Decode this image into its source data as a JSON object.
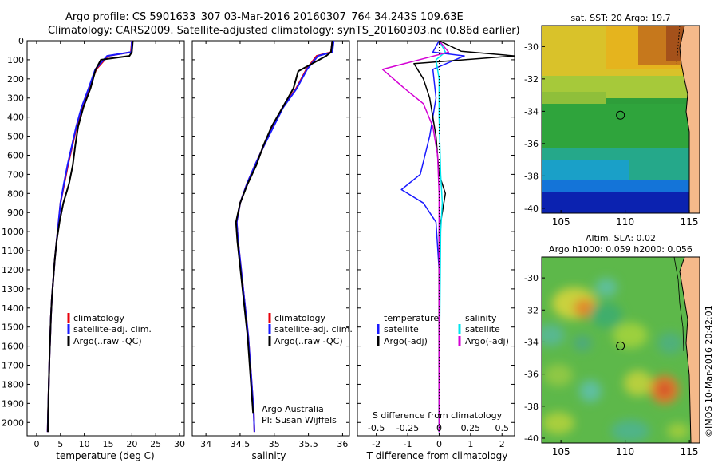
{
  "header": {
    "line1": "Argo profile: CS 5901633_307 03-Mar-2016 20160307_764 34.243S 109.63E",
    "line2": "Climatology: CARS2009. Satellite-adjusted climatology: synTS_20160303.nc (0.86d earlier)"
  },
  "copyright": "©IMOS 10-Mar-2016 20:42:01",
  "colors": {
    "climatology": "#e8000b",
    "satellite": "#1a1aff",
    "argo": "#000000",
    "sat_salinity": "#00e5ee",
    "argo_adj_salinity": "#d400d4"
  },
  "chart_data": [
    {
      "id": "temperature",
      "type": "line",
      "xlabel": "temperature (deg C)",
      "ylabel": "",
      "xlim": [
        -2,
        31
      ],
      "ylim": [
        2070,
        0
      ],
      "xticks": [
        0,
        5,
        10,
        15,
        20,
        25,
        30
      ],
      "yticks": [
        0,
        100,
        200,
        300,
        400,
        500,
        600,
        700,
        800,
        900,
        1000,
        1100,
        1200,
        1300,
        1400,
        1500,
        1600,
        1700,
        1800,
        1900,
        2000
      ],
      "legend": [
        "climatology",
        "satellite-adj. clim.",
        "Argo(..raw -QC)"
      ],
      "series": [
        {
          "name": "climatology",
          "points": [
            [
              20,
              0
            ],
            [
              19.8,
              60
            ],
            [
              15,
              80
            ],
            [
              12.5,
              150
            ],
            [
              11,
              250
            ],
            [
              9.5,
              350
            ],
            [
              8.4,
              450
            ],
            [
              7.5,
              550
            ],
            [
              6.6,
              650
            ],
            [
              5.8,
              750
            ],
            [
              5,
              850
            ],
            [
              4.6,
              950
            ],
            [
              4.2,
              1050
            ],
            [
              3.8,
              1150
            ],
            [
              3.5,
              1250
            ],
            [
              3.2,
              1350
            ],
            [
              3,
              1450
            ],
            [
              2.85,
              1550
            ],
            [
              2.7,
              1650
            ],
            [
              2.6,
              1750
            ],
            [
              2.5,
              1850
            ],
            [
              2.4,
              1950
            ],
            [
              2.3,
              2050
            ]
          ]
        },
        {
          "name": "satellite-adj. clim.",
          "points": [
            [
              20,
              0
            ],
            [
              19.9,
              60
            ],
            [
              14.8,
              80
            ],
            [
              12.3,
              150
            ],
            [
              10.9,
              250
            ],
            [
              9.4,
              350
            ],
            [
              8.3,
              450
            ],
            [
              7.4,
              550
            ],
            [
              6.5,
              650
            ],
            [
              5.7,
              750
            ],
            [
              5,
              850
            ],
            [
              4.6,
              950
            ],
            [
              4.2,
              1050
            ],
            [
              3.8,
              1150
            ],
            [
              3.5,
              1250
            ],
            [
              3.2,
              1350
            ],
            [
              3,
              1450
            ],
            [
              2.85,
              1550
            ],
            [
              2.7,
              1650
            ],
            [
              2.6,
              1750
            ],
            [
              2.5,
              1850
            ],
            [
              2.4,
              1950
            ],
            [
              2.3,
              2050
            ]
          ]
        },
        {
          "name": "Argo(..raw -QC)",
          "points": [
            [
              20.2,
              0
            ],
            [
              20,
              60
            ],
            [
              19.5,
              80
            ],
            [
              13.5,
              100
            ],
            [
              12.4,
              150
            ],
            [
              11.3,
              250
            ],
            [
              9.8,
              350
            ],
            [
              8.7,
              450
            ],
            [
              8.1,
              550
            ],
            [
              7.6,
              650
            ],
            [
              6.8,
              750
            ],
            [
              5.6,
              850
            ],
            [
              4.8,
              950
            ],
            [
              4.2,
              1050
            ],
            [
              3.8,
              1150
            ],
            [
              3.5,
              1250
            ],
            [
              3.2,
              1350
            ],
            [
              3,
              1450
            ],
            [
              2.85,
              1550
            ],
            [
              2.7,
              1650
            ],
            [
              2.6,
              1750
            ],
            [
              2.5,
              1850
            ],
            [
              2.4,
              1950
            ],
            [
              2.35,
              2050
            ]
          ]
        }
      ]
    },
    {
      "id": "salinity",
      "type": "line",
      "xlabel": "salinity",
      "xlim": [
        33.8,
        36.1
      ],
      "ylim": [
        2070,
        0
      ],
      "xticks": [
        34,
        34.5,
        35,
        35.5,
        36
      ],
      "legend": [
        "climatology",
        "satellite-adj. clim.",
        "Argo(..raw -QC)"
      ],
      "annotation": [
        "Argo Australia",
        "PI: Susan Wijffels"
      ],
      "series": [
        {
          "name": "climatology",
          "points": [
            [
              35.85,
              0
            ],
            [
              35.83,
              60
            ],
            [
              35.62,
              80
            ],
            [
              35.47,
              150
            ],
            [
              35.32,
              250
            ],
            [
              35.12,
              350
            ],
            [
              34.98,
              450
            ],
            [
              34.85,
              550
            ],
            [
              34.72,
              650
            ],
            [
              34.6,
              750
            ],
            [
              34.5,
              850
            ],
            [
              34.45,
              950
            ],
            [
              34.47,
              1050
            ],
            [
              34.5,
              1150
            ],
            [
              34.53,
              1250
            ],
            [
              34.56,
              1350
            ],
            [
              34.59,
              1450
            ],
            [
              34.62,
              1550
            ],
            [
              34.64,
              1650
            ],
            [
              34.66,
              1750
            ],
            [
              34.68,
              1850
            ],
            [
              34.7,
              1950
            ],
            [
              34.71,
              2050
            ]
          ]
        },
        {
          "name": "satellite-adj. clim.",
          "points": [
            [
              35.87,
              0
            ],
            [
              35.85,
              60
            ],
            [
              35.64,
              80
            ],
            [
              35.48,
              150
            ],
            [
              35.33,
              250
            ],
            [
              35.13,
              350
            ],
            [
              34.99,
              450
            ],
            [
              34.85,
              550
            ],
            [
              34.72,
              650
            ],
            [
              34.6,
              750
            ],
            [
              34.5,
              850
            ],
            [
              34.45,
              950
            ],
            [
              34.47,
              1050
            ],
            [
              34.5,
              1150
            ],
            [
              34.53,
              1250
            ],
            [
              34.56,
              1350
            ],
            [
              34.59,
              1450
            ],
            [
              34.62,
              1550
            ],
            [
              34.64,
              1650
            ],
            [
              34.66,
              1750
            ],
            [
              34.68,
              1850
            ],
            [
              34.7,
              1950
            ],
            [
              34.71,
              2050
            ]
          ]
        },
        {
          "name": "Argo(..raw -QC)",
          "points": [
            [
              35.85,
              0
            ],
            [
              35.83,
              60
            ],
            [
              35.76,
              80
            ],
            [
              35.35,
              160
            ],
            [
              35.28,
              250
            ],
            [
              35.12,
              350
            ],
            [
              34.96,
              450
            ],
            [
              34.84,
              550
            ],
            [
              34.74,
              650
            ],
            [
              34.61,
              750
            ],
            [
              34.5,
              850
            ],
            [
              34.44,
              950
            ],
            [
              34.46,
              1050
            ],
            [
              34.49,
              1150
            ],
            [
              34.52,
              1250
            ],
            [
              34.55,
              1350
            ],
            [
              34.58,
              1450
            ],
            [
              34.61,
              1550
            ],
            [
              34.63,
              1650
            ],
            [
              34.65,
              1750
            ],
            [
              34.67,
              1850
            ],
            [
              34.69,
              1950
            ]
          ]
        }
      ]
    },
    {
      "id": "difference",
      "type": "line",
      "xlabel": "T difference from climatology",
      "top_label": "S difference from climatology",
      "xlim": [
        -2.6,
        2.4
      ],
      "ylim": [
        2070,
        0
      ],
      "xticks": [
        -2,
        -1,
        0,
        1,
        2
      ],
      "top_ticks": [
        "-0.5",
        "-0.25",
        "0",
        "0.25",
        "0.5"
      ],
      "top_tick_T": [
        -2,
        -1,
        0,
        1,
        2
      ],
      "legend_titles": [
        "temperature",
        "salinity"
      ],
      "legend": [
        "satellite",
        "Argo(-adj)",
        "satellite",
        "Argo(-adj)"
      ],
      "series": [
        {
          "name": "temperature satellite",
          "points": [
            [
              0,
              0
            ],
            [
              -0.2,
              60
            ],
            [
              0.8,
              80
            ],
            [
              -0.2,
              150
            ],
            [
              -0.1,
              300
            ],
            [
              -0.3,
              500
            ],
            [
              -0.6,
              700
            ],
            [
              -1.2,
              780
            ],
            [
              -0.5,
              850
            ],
            [
              -0.1,
              950
            ],
            [
              0,
              1200
            ],
            [
              0,
              2050
            ]
          ]
        },
        {
          "name": "temperature Argo(-adj)",
          "points": [
            [
              0,
              0
            ],
            [
              0.7,
              55
            ],
            [
              2.4,
              80
            ],
            [
              -0.8,
              120
            ],
            [
              -0.5,
              200
            ],
            [
              -0.3,
              300
            ],
            [
              -0.1,
              500
            ],
            [
              0,
              700
            ],
            [
              0.2,
              800
            ],
            [
              0.1,
              900
            ],
            [
              0,
              1000
            ],
            [
              0,
              2050
            ]
          ]
        },
        {
          "name": "salinity satellite",
          "points": [
            [
              0,
              0
            ],
            [
              0.2,
              60
            ],
            [
              -0.1,
              100
            ],
            [
              0,
              200
            ],
            [
              0,
              400
            ],
            [
              0.05,
              700
            ],
            [
              0.1,
              850
            ],
            [
              0.05,
              1000
            ],
            [
              0.02,
              1500
            ],
            [
              0,
              2050
            ]
          ]
        },
        {
          "name": "salinity Argo(-adj)",
          "points": [
            [
              0,
              0
            ],
            [
              0.3,
              60
            ],
            [
              -1.8,
              150
            ],
            [
              -1.1,
              250
            ],
            [
              -0.5,
              330
            ],
            [
              -0.2,
              450
            ],
            [
              -0.05,
              600
            ],
            [
              0,
              800
            ],
            [
              0,
              2050
            ]
          ]
        }
      ]
    },
    {
      "id": "sst_map",
      "type": "heatmap",
      "title": "sat. SST: 20 Argo: 19.7",
      "xlim": [
        103.5,
        115.8
      ],
      "ylim": [
        -40.3,
        -28.7
      ],
      "xticks": [
        105,
        110,
        115
      ],
      "yticks": [
        -30,
        -32,
        -34,
        -36,
        -38,
        -40
      ],
      "marker": [
        109.63,
        -34.243
      ]
    },
    {
      "id": "sla_map",
      "type": "heatmap",
      "title": "Altim. SLA: 0.02",
      "subtitle": "Argo h1000: 0.059 h2000: 0.056",
      "xlim": [
        103.5,
        115.8
      ],
      "ylim": [
        -40.3,
        -28.7
      ],
      "xticks": [
        105,
        110,
        115
      ],
      "yticks": [
        -30,
        -32,
        -34,
        -36,
        -38,
        -40
      ],
      "marker": [
        109.63,
        -34.243
      ]
    }
  ]
}
